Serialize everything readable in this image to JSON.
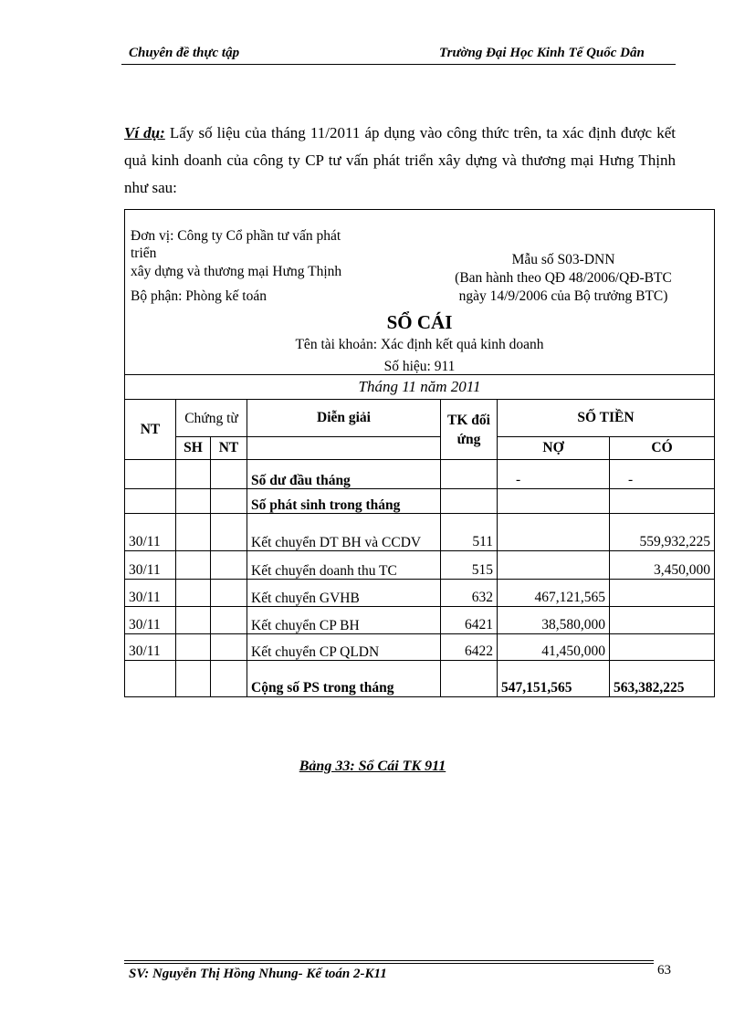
{
  "header": {
    "left": "Chuyên đề thực tập",
    "right": "Trường Đại Học Kinh Tế Quốc Dân"
  },
  "intro": {
    "lead": "Ví dụ:",
    "text": " Lấy số liệu của tháng 11/2011 áp dụng vào công thức trên, ta xác định được kết quả kinh doanh của công ty CP tư vấn phát triển xây dựng và thương mại Hưng Thịnh như sau:"
  },
  "ledger": {
    "unit_line1": "Đơn vị: Công ty Cổ phần tư vấn phát",
    "unit_line2": "triển",
    "unit_line3": "xây dựng và thương mại Hưng Thịnh",
    "department": "Bộ phận:  Phòng kế toán",
    "form_no": "Mẫu số S03-DNN",
    "form_issued": "(Ban hành theo QĐ 48/2006/QĐ-BTC",
    "form_date": "ngày 14/9/2006 của Bộ trưởng BTC)",
    "title": "SỔ CÁI",
    "account_name": "Tên tài khoản: Xác định kết quả kinh doanh",
    "account_no": "Số hiệu: 911",
    "period": "Tháng 11 năm 2011",
    "columns": {
      "nt": "NT",
      "voucher": "Chứng từ",
      "desc": "Diễn giải",
      "tk": "TK đối ứng",
      "amount": "SỐ TIỀN",
      "sh": "SH",
      "vnt": "NT",
      "debit": "NỢ",
      "credit": "CÓ"
    },
    "rows": [
      {
        "nt": "",
        "desc": "Số dư đầu tháng",
        "tk": "",
        "debit": "-",
        "credit": "-",
        "bold": true
      },
      {
        "nt": "",
        "desc": "Số phát sinh trong tháng",
        "tk": "",
        "debit": "",
        "credit": "",
        "bold": true
      },
      {
        "nt": "30/11",
        "desc": "Kết chuyển DT BH và CCDV",
        "tk": "511",
        "debit": "",
        "credit": "559,932,225"
      },
      {
        "nt": "30/11",
        "desc": "Kết chuyển doanh thu TC",
        "tk": "515",
        "debit": "",
        "credit": "3,450,000"
      },
      {
        "nt": "30/11",
        "desc": "Kết chuyển GVHB",
        "tk": "632",
        "debit": "467,121,565",
        "credit": ""
      },
      {
        "nt": "30/11",
        "desc": "Kết chuyển CP BH",
        "tk": "6421",
        "debit": "38,580,000",
        "credit": ""
      },
      {
        "nt": "30/11",
        "desc": "Kết chuyển CP QLDN",
        "tk": "6422",
        "debit": "41,450,000",
        "credit": ""
      }
    ],
    "total": {
      "desc": "Cộng số PS trong tháng",
      "debit": "547,151,565",
      "credit": "563,382,225"
    }
  },
  "caption": "Bảng 33: Sổ Cái TK 911",
  "footer": {
    "author": "SV: Nguyễn Thị Hồng Nhung-  Kế toán 2-K11",
    "page": "63"
  }
}
